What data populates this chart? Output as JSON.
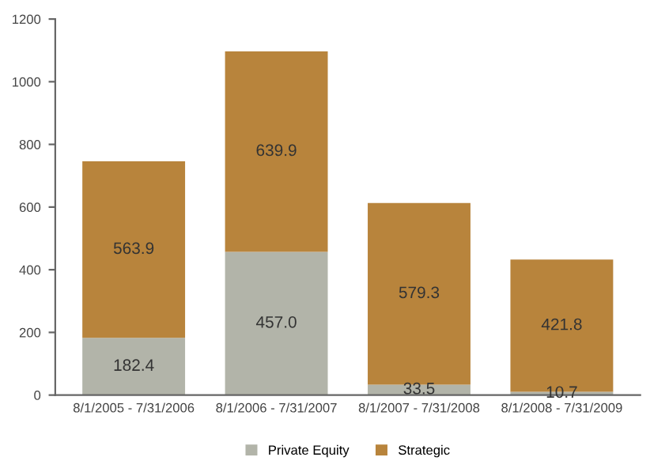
{
  "chart_data": {
    "type": "bar",
    "stacked": true,
    "categories": [
      "8/1/2005 - 7/31/2006",
      "8/1/2006 - 7/31/2007",
      "8/1/2007 - 7/31/2008",
      "8/1/2008 - 7/31/2009"
    ],
    "series": [
      {
        "name": "Private Equity",
        "color": "#b2b4a9",
        "values": [
          182.4,
          457.0,
          33.5,
          10.7
        ],
        "value_labels": [
          "182.4",
          "457.0",
          "33.5",
          "10.7"
        ]
      },
      {
        "name": "Strategic",
        "color": "#b8843c",
        "values": [
          563.9,
          639.9,
          579.3,
          421.8
        ],
        "value_labels": [
          "563.9",
          "639.9",
          "579.3",
          "421.8"
        ]
      }
    ],
    "ylim": [
      0,
      1200
    ],
    "yticks": [
      0,
      200,
      400,
      600,
      800,
      1000,
      1200
    ],
    "grid": false,
    "legend": "bottom"
  }
}
